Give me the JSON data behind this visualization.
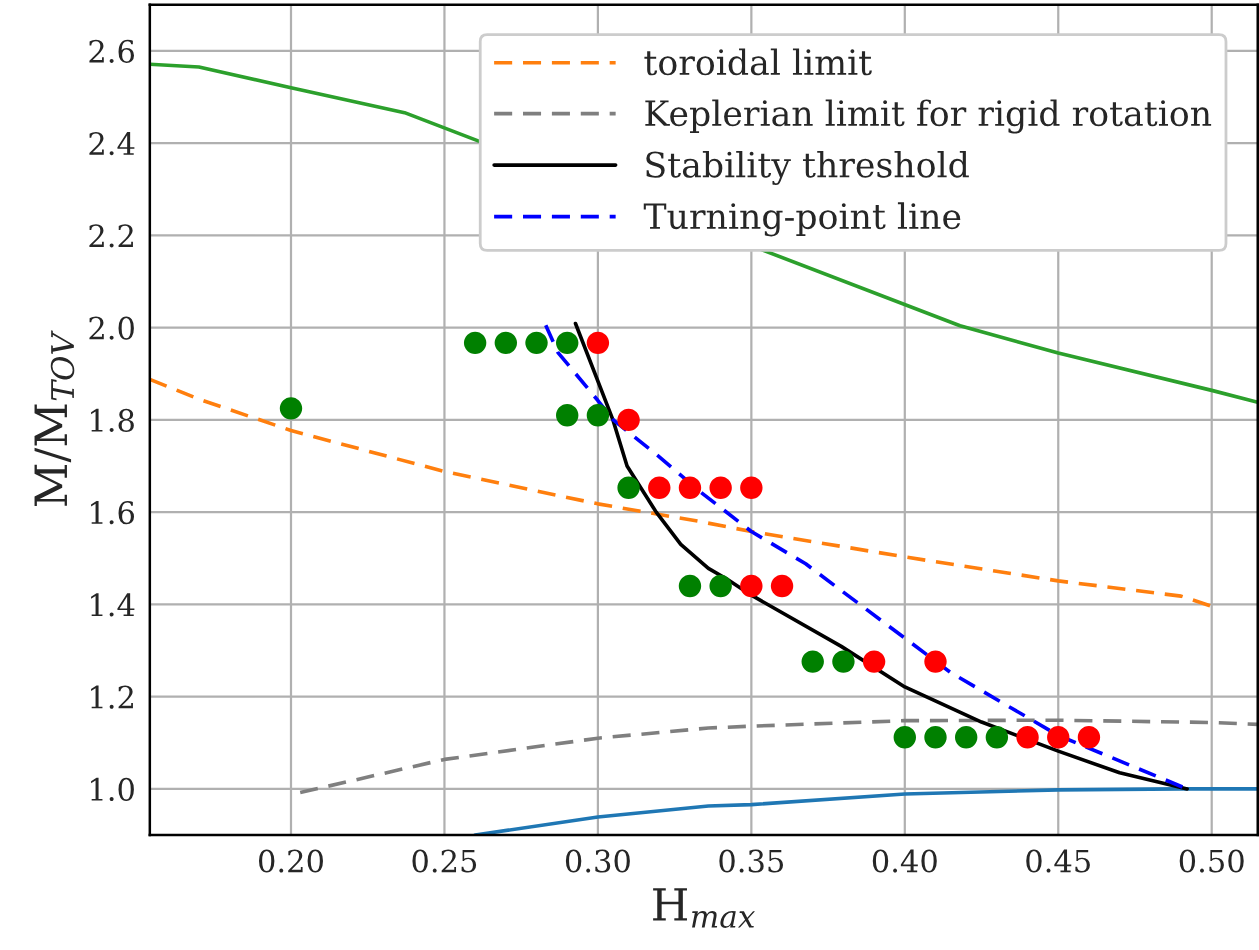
{
  "chart_data": {
    "type": "line",
    "xlabel": "H$_{max}$",
    "ylabel": "M/M$_{TOV}$",
    "xlim": [
      0.154,
      0.515
    ],
    "ylim": [
      0.9,
      2.7
    ],
    "xticks": [
      {
        "value": 0.2,
        "label": "0.20"
      },
      {
        "value": 0.25,
        "label": "0.25"
      },
      {
        "value": 0.3,
        "label": "0.30"
      },
      {
        "value": 0.35,
        "label": "0.35"
      },
      {
        "value": 0.4,
        "label": "0.40"
      },
      {
        "value": 0.45,
        "label": "0.45"
      },
      {
        "value": 0.5,
        "label": "0.50"
      }
    ],
    "yticks": [
      {
        "value": 1.0,
        "label": "1.0"
      },
      1.2,
      1.4,
      1.6,
      1.8,
      {
        "value": 2.0,
        "label": "2.0"
      },
      2.2,
      2.4,
      2.6
    ],
    "grid": true,
    "legend": "top right",
    "series": [
      {
        "color": "#2ca02c",
        "line_style": "solid",
        "x": [
          0.154,
          0.17,
          0.2,
          0.237,
          0.418,
          0.45,
          0.5,
          0.515
        ],
        "values": [
          2.571,
          2.565,
          2.52,
          2.466,
          2.004,
          1.945,
          1.864,
          1.838
        ]
      },
      {
        "color": "#1f77b4",
        "line_style": "solid",
        "x": [
          0.26,
          0.3,
          0.336,
          0.35,
          0.4,
          0.45,
          0.49,
          0.515
        ],
        "values": [
          0.9,
          0.939,
          0.963,
          0.966,
          0.989,
          0.998,
          1.0,
          1.0
        ]
      },
      {
        "name": "toroidal limit",
        "color": "#ff7f0e",
        "line_style": "dashed",
        "x": [
          0.154,
          0.17,
          0.2,
          0.25,
          0.3,
          0.333,
          0.35,
          0.4,
          0.45,
          0.49,
          0.5
        ],
        "values": [
          1.888,
          1.845,
          1.777,
          1.688,
          1.618,
          1.58,
          1.558,
          1.503,
          1.451,
          1.418,
          1.396
        ]
      },
      {
        "name": "Keplerian limit for rigid rotation",
        "color": "#7f7f7f",
        "line_style": "dashed",
        "x": [
          0.203,
          0.25,
          0.3,
          0.336,
          0.35,
          0.4,
          0.45,
          0.5,
          0.515
        ],
        "values": [
          0.992,
          1.064,
          1.11,
          1.132,
          1.136,
          1.148,
          1.149,
          1.144,
          1.14
        ]
      },
      {
        "name": "Stability threshold",
        "color": "#000000",
        "line_style": "solid",
        "x": [
          0.2927,
          0.3049,
          0.3095,
          0.319,
          0.327,
          0.336,
          0.342,
          0.35,
          0.3793,
          0.4,
          0.425,
          0.45,
          0.47,
          0.492
        ],
        "values": [
          2.009,
          1.8,
          1.7,
          1.6,
          1.53,
          1.478,
          1.455,
          1.42,
          1.309,
          1.221,
          1.145,
          1.082,
          1.035,
          1.0
        ]
      },
      {
        "name": "Turning-point line",
        "color": "#0000ff",
        "line_style": "dashed",
        "x": [
          0.283,
          0.287,
          0.3,
          0.305,
          0.32,
          0.333,
          0.35,
          0.3677,
          0.415,
          0.45,
          0.492
        ],
        "values": [
          2.005,
          1.946,
          1.842,
          1.8,
          1.72,
          1.646,
          1.558,
          1.488,
          1.252,
          1.116,
          1.0
        ]
      },
      {
        "type": "scatter",
        "color": "#008000",
        "marker": "circle",
        "x": [
          0.2,
          0.26,
          0.27,
          0.28,
          0.29,
          0.29,
          0.3,
          0.31,
          0.33,
          0.34,
          0.37,
          0.38,
          0.4,
          0.41,
          0.42,
          0.43
        ],
        "values": [
          1.825,
          1.967,
          1.967,
          1.967,
          1.967,
          1.81,
          1.81,
          1.653,
          1.44,
          1.44,
          1.276,
          1.276,
          1.112,
          1.112,
          1.112,
          1.112
        ]
      },
      {
        "type": "scatter",
        "color": "#ff0000",
        "marker": "circle",
        "x": [
          0.3,
          0.31,
          0.32,
          0.33,
          0.34,
          0.35,
          0.35,
          0.36,
          0.39,
          0.41,
          0.44,
          0.45,
          0.46
        ],
        "values": [
          1.967,
          1.8,
          1.653,
          1.653,
          1.653,
          1.653,
          1.44,
          1.44,
          1.276,
          1.276,
          1.112,
          1.112,
          1.112
        ]
      }
    ]
  }
}
